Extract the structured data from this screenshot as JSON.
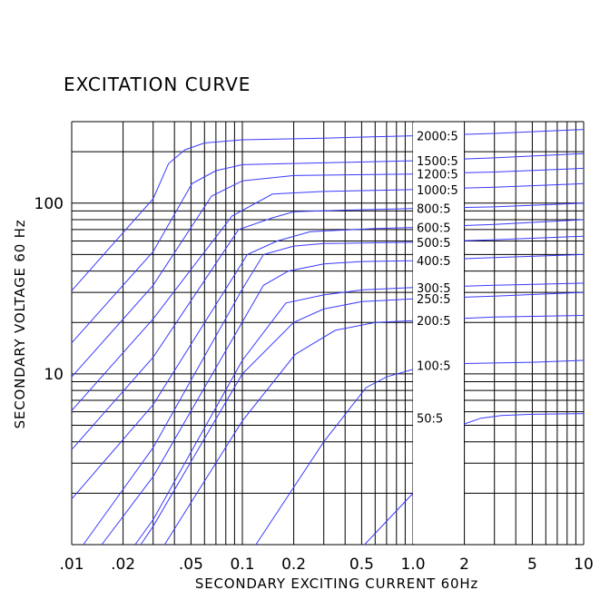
{
  "chart_data": {
    "type": "line",
    "title": "EXCITATION CURVE",
    "xlabel": "SECONDARY EXCITING CURRENT 60Hz",
    "ylabel": "SECONDARY VOLTAGE 60 Hz",
    "x_scale": "log",
    "y_scale": "log",
    "xlim": [
      0.01,
      10
    ],
    "ylim": [
      1,
      300
    ],
    "grid": true,
    "x_ticks": [
      {
        "value": 0.01,
        "label": ".01"
      },
      {
        "value": 0.02,
        "label": ".02"
      },
      {
        "value": 0.05,
        "label": ".05"
      },
      {
        "value": 0.1,
        "label": "0.1"
      },
      {
        "value": 0.2,
        "label": "0.2"
      },
      {
        "value": 0.5,
        "label": "0.5"
      },
      {
        "value": 1,
        "label": "1.0"
      },
      {
        "value": 2,
        "label": "2"
      },
      {
        "value": 5,
        "label": "5"
      },
      {
        "value": 10,
        "label": "10"
      }
    ],
    "y_ticks": [
      {
        "value": 10,
        "label": "10"
      },
      {
        "value": 100,
        "label": "100"
      }
    ],
    "colors": {
      "curve": "#3a3aff",
      "grid": "#000000"
    },
    "series": [
      {
        "name": "2000:5",
        "points": [
          [
            0.01,
            30.7
          ],
          [
            0.03,
            106
          ],
          [
            0.0369,
            170
          ],
          [
            0.046,
            205
          ],
          [
            0.06,
            225
          ],
          [
            0.1,
            235
          ],
          [
            0.3,
            240
          ],
          [
            1,
            248
          ],
          [
            3,
            256
          ],
          [
            10,
            270
          ]
        ]
      },
      {
        "name": "1500:5",
        "points": [
          [
            0.01,
            15.2
          ],
          [
            0.03,
            52
          ],
          [
            0.0507,
            130
          ],
          [
            0.07,
            155
          ],
          [
            0.1,
            168
          ],
          [
            0.3,
            172
          ],
          [
            1,
            177
          ],
          [
            3,
            184
          ],
          [
            10,
            195
          ]
        ]
      },
      {
        "name": "1200:5",
        "points": [
          [
            0.01,
            9.6
          ],
          [
            0.03,
            33
          ],
          [
            0.066,
            110
          ],
          [
            0.1,
            135
          ],
          [
            0.2,
            145
          ],
          [
            1,
            148
          ],
          [
            3,
            152
          ],
          [
            10,
            160
          ]
        ]
      },
      {
        "name": "1000:5",
        "points": [
          [
            0.01,
            6.1
          ],
          [
            0.03,
            21
          ],
          [
            0.087,
            84
          ],
          [
            0.15,
            113
          ],
          [
            0.3,
            117
          ],
          [
            1,
            120
          ],
          [
            3,
            124
          ],
          [
            10,
            130
          ]
        ]
      },
      {
        "name": "800:5",
        "points": [
          [
            0.01,
            3.6
          ],
          [
            0.03,
            12.5
          ],
          [
            0.095,
            70
          ],
          [
            0.15,
            82
          ],
          [
            0.2,
            89
          ],
          [
            0.4,
            91
          ],
          [
            1,
            93
          ],
          [
            3,
            95
          ],
          [
            10,
            100
          ]
        ]
      },
      {
        "name": "600:5",
        "points": [
          [
            0.01,
            1.85
          ],
          [
            0.03,
            6.6
          ],
          [
            0.107,
            50
          ],
          [
            0.16,
            60
          ],
          [
            0.25,
            68
          ],
          [
            0.6,
            71
          ],
          [
            1,
            72
          ],
          [
            3,
            75
          ],
          [
            10,
            80
          ]
        ]
      },
      {
        "name": "500:5",
        "points": [
          [
            0.0117,
            1
          ],
          [
            0.03,
            3.7
          ],
          [
            0.1,
            31.4
          ],
          [
            0.133,
            50
          ],
          [
            0.2,
            56
          ],
          [
            0.3,
            58
          ],
          [
            1,
            59
          ],
          [
            3,
            61
          ],
          [
            10,
            64
          ]
        ]
      },
      {
        "name": "400:5",
        "points": [
          [
            0.015,
            1
          ],
          [
            0.03,
            2.5
          ],
          [
            0.133,
            33
          ],
          [
            0.186,
            40
          ],
          [
            0.3,
            44
          ],
          [
            0.5,
            45.5
          ],
          [
            1,
            46
          ],
          [
            3,
            48
          ],
          [
            10,
            50
          ]
        ]
      },
      {
        "name": "300:5",
        "points": [
          [
            0.0235,
            1
          ],
          [
            0.03,
            1.4
          ],
          [
            0.1,
            12
          ],
          [
            0.18,
            26
          ],
          [
            0.3,
            29
          ],
          [
            0.5,
            31
          ],
          [
            1,
            32
          ],
          [
            3,
            33
          ],
          [
            10,
            34
          ]
        ]
      },
      {
        "name": "250:5",
        "points": [
          [
            0.0254,
            1
          ],
          [
            0.03,
            1.28
          ],
          [
            0.1,
            10
          ],
          [
            0.2,
            20
          ],
          [
            0.3,
            24
          ],
          [
            0.5,
            26.5
          ],
          [
            1,
            27.5
          ],
          [
            3,
            28.5
          ],
          [
            10,
            30
          ]
        ]
      },
      {
        "name": "200:5",
        "points": [
          [
            0.035,
            1
          ],
          [
            0.1,
            5.3
          ],
          [
            0.204,
            13
          ],
          [
            0.35,
            18
          ],
          [
            0.6,
            20
          ],
          [
            1,
            20.5
          ],
          [
            3,
            21.5
          ],
          [
            10,
            22
          ]
        ]
      },
      {
        "name": "100:5",
        "points": [
          [
            0.12,
            1
          ],
          [
            0.3,
            4
          ],
          [
            0.53,
            8.3
          ],
          [
            0.7,
            9.6
          ],
          [
            1.2,
            11.2
          ],
          [
            2,
            11.5
          ],
          [
            5,
            11.7
          ],
          [
            10,
            12
          ]
        ]
      },
      {
        "name": "50:5",
        "points": [
          [
            0.52,
            1
          ],
          [
            1,
            2
          ],
          [
            1.45,
            4.2
          ],
          [
            1.9,
            5
          ],
          [
            2.5,
            5.5
          ],
          [
            3.3,
            5.7
          ],
          [
            5,
            5.8
          ],
          [
            10,
            5.85
          ]
        ]
      }
    ],
    "series_label_values": [
      {
        "name": "2000:5",
        "y": 248
      },
      {
        "name": "1500:5",
        "y": 177
      },
      {
        "name": "1200:5",
        "y": 148
      },
      {
        "name": "1000:5",
        "y": 120
      },
      {
        "name": "800:5",
        "y": 93
      },
      {
        "name": "600:5",
        "y": 72
      },
      {
        "name": "500:5",
        "y": 59
      },
      {
        "name": "400:5",
        "y": 46
      },
      {
        "name": "300:5",
        "y": 32
      },
      {
        "name": "250:5",
        "y": 27.5
      },
      {
        "name": "200:5",
        "y": 20.5
      },
      {
        "name": "100:5",
        "y": 11.2
      },
      {
        "name": "50:5",
        "y": 5.5
      }
    ]
  }
}
